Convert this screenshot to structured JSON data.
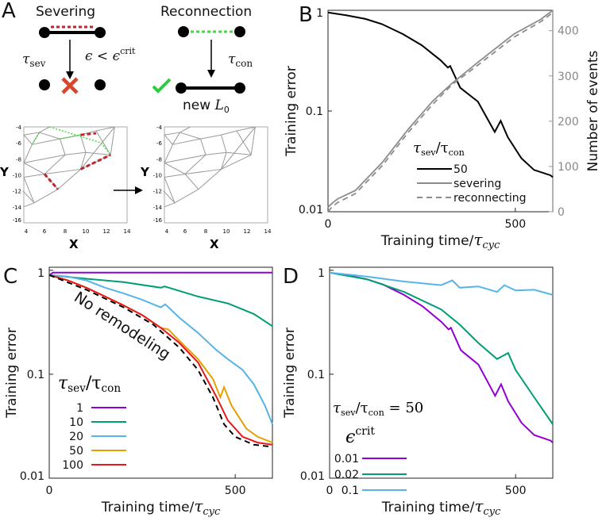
{
  "panel_letters": [
    "A",
    "B",
    "C",
    "D"
  ],
  "panelA": {
    "severing_title": "Severing",
    "reconnection_title": "Reconnection",
    "tau_sev": "τ",
    "tau_sev_sub": "sev",
    "condition": "ϵ < ϵ",
    "condition_sup": "crit",
    "tau_con": "τ",
    "tau_con_sub": "con",
    "new_L0": "new ",
    "L": "L",
    "L_sub": "0",
    "mesh_x_ticks": [
      "4",
      "6",
      "8",
      "10",
      "12",
      "14"
    ],
    "mesh_y_ticks": [
      "-4",
      "-6",
      "-8",
      "-10",
      "-12",
      "-14",
      "-16"
    ],
    "x_label": "X",
    "y_label": "Y",
    "colors": {
      "sever": "#c0272d",
      "reconnect": "#4cd34c",
      "cross": "#d9452b",
      "check": "#2ecc40"
    }
  },
  "chart_data": [
    {
      "id": "B",
      "type": "line",
      "xlabel": "Training time/τ",
      "xlabel_sub": "cyc",
      "ylabel": "Training error",
      "ylabel_right": "Number of events",
      "xlim": [
        0,
        600
      ],
      "ylim": [
        0.01,
        1
      ],
      "yscale": "log",
      "ylim_right": [
        0,
        445
      ],
      "x_ticks": [
        "0",
        "500"
      ],
      "y_ticks": [
        "1",
        "0.1",
        "0.01"
      ],
      "y_ticks_right": [
        "0",
        "100",
        "200",
        "300",
        "400"
      ],
      "legend": {
        "title": "τ",
        "title_sub1": "sev",
        "title_sub2": "con",
        "placement": "bottom-center"
      },
      "series": [
        {
          "name": "50",
          "axis": "left",
          "color": "#000000",
          "dash": false,
          "x": [
            0,
            50,
            100,
            144,
            200,
            250,
            300,
            320,
            326,
            353,
            400,
            445,
            461,
            480,
            516,
            550,
            594,
            600
          ],
          "y": [
            0.95,
            0.89,
            0.82,
            0.73,
            0.58,
            0.45,
            0.32,
            0.27,
            0.28,
            0.17,
            0.124,
            0.062,
            0.08,
            0.055,
            0.034,
            0.026,
            0.023,
            0.022
          ]
        },
        {
          "name": "severing",
          "axis": "right",
          "color": "#8c8c8c",
          "dash": false,
          "x": [
            0,
            10,
            25,
            73,
            145,
            214,
            280,
            330,
            400,
            497,
            568,
            600
          ],
          "y": [
            10,
            18,
            28,
            47,
            109,
            182,
            245,
            283,
            330,
            393,
            425,
            445
          ]
        },
        {
          "name": "reconnecting",
          "axis": "right",
          "color": "#8c8c8c",
          "dash": true,
          "x": [
            0,
            10,
            25,
            73,
            145,
            214,
            280,
            330,
            400,
            497,
            568,
            600
          ],
          "y": [
            0,
            10,
            20,
            40,
            102,
            175,
            238,
            280,
            324,
            386,
            420,
            440
          ]
        }
      ]
    },
    {
      "id": "C",
      "type": "line",
      "xlabel": "Training time/τ",
      "xlabel_sub": "cyc",
      "ylabel": "Training error",
      "xlim": [
        0,
        600
      ],
      "ylim": [
        0.01,
        1.07
      ],
      "yscale": "log",
      "x_ticks": [
        "0",
        "500"
      ],
      "y_ticks": [
        "1",
        "0.1",
        "0.01"
      ],
      "annotation": "No remodeling",
      "legend": {
        "title": "τ",
        "title_sub1": "sev",
        "title_sub2": "con",
        "placement": "bottom-left"
      },
      "series": [
        {
          "name": "1",
          "color": "#9400d3",
          "dash": false,
          "x": [
            0,
            10,
            600
          ],
          "y": [
            0.9,
            0.95,
            0.95
          ]
        },
        {
          "name": "10",
          "color": "#009e73",
          "dash": false,
          "x": [
            0,
            100,
            200,
            300,
            310,
            400,
            480,
            550,
            600
          ],
          "y": [
            0.9,
            0.83,
            0.77,
            0.68,
            0.7,
            0.56,
            0.48,
            0.38,
            0.29
          ]
        },
        {
          "name": "20",
          "color": "#56b4e9",
          "dash": false,
          "x": [
            0,
            50,
            100,
            150,
            200,
            250,
            300,
            312,
            350,
            400,
            450,
            480,
            520,
            550,
            580,
            600
          ],
          "y": [
            0.9,
            0.87,
            0.8,
            0.68,
            0.6,
            0.52,
            0.44,
            0.47,
            0.35,
            0.25,
            0.17,
            0.14,
            0.11,
            0.08,
            0.05,
            0.033
          ]
        },
        {
          "name": "50",
          "color": "#e69f00",
          "dash": false,
          "x": [
            0,
            50,
            100,
            150,
            200,
            250,
            300,
            320,
            350,
            400,
            440,
            460,
            470,
            490,
            530,
            560,
            600
          ],
          "y": [
            0.9,
            0.8,
            0.68,
            0.56,
            0.46,
            0.37,
            0.28,
            0.27,
            0.21,
            0.14,
            0.09,
            0.06,
            0.075,
            0.05,
            0.03,
            0.025,
            0.022
          ]
        },
        {
          "name": "100",
          "color": "#e41a1c",
          "dash": false,
          "x": [
            0,
            50,
            100,
            150,
            200,
            250,
            300,
            350,
            400,
            450,
            480,
            520,
            560,
            600
          ],
          "y": [
            0.9,
            0.8,
            0.68,
            0.56,
            0.46,
            0.37,
            0.28,
            0.2,
            0.13,
            0.06,
            0.036,
            0.025,
            0.022,
            0.021
          ]
        },
        {
          "name": "No remodeling",
          "color": "#000000",
          "dash": true,
          "legend": false,
          "x": [
            0,
            100,
            200,
            280,
            350,
            400,
            440,
            470,
            500,
            550,
            600
          ],
          "y": [
            0.9,
            0.65,
            0.44,
            0.3,
            0.18,
            0.11,
            0.06,
            0.033,
            0.025,
            0.021,
            0.02
          ]
        }
      ]
    },
    {
      "id": "D",
      "type": "line",
      "xlabel": "Training time/τ",
      "xlabel_sub": "cyc",
      "ylabel": "Training error",
      "xlim": [
        0,
        600
      ],
      "ylim": [
        0.01,
        1.07
      ],
      "yscale": "log",
      "x_ticks": [
        "0",
        "500"
      ],
      "y_ticks": [
        "1",
        "0.1",
        "0.01"
      ],
      "annotation": "τ",
      "annotation_sub1": "sev",
      "annotation_sub2": "con",
      "annotation_value": " = 50",
      "legend": {
        "title": "ϵ",
        "title_sup": "crit",
        "placement": "bottom-left"
      },
      "series": [
        {
          "name": "0.01",
          "color": "#9400d3",
          "dash": false,
          "x": [
            0,
            50,
            100,
            144,
            200,
            250,
            300,
            320,
            326,
            353,
            400,
            445,
            461,
            480,
            516,
            550,
            594,
            600
          ],
          "y": [
            0.95,
            0.89,
            0.82,
            0.73,
            0.58,
            0.45,
            0.32,
            0.27,
            0.28,
            0.17,
            0.124,
            0.062,
            0.08,
            0.055,
            0.034,
            0.026,
            0.023,
            0.022
          ]
        },
        {
          "name": "0.02",
          "color": "#009e73",
          "dash": false,
          "x": [
            0,
            100,
            200,
            300,
            350,
            400,
            450,
            480,
            500,
            550,
            600
          ],
          "y": [
            0.95,
            0.82,
            0.62,
            0.42,
            0.3,
            0.2,
            0.14,
            0.16,
            0.11,
            0.06,
            0.033
          ]
        },
        {
          "name": "0.1",
          "color": "#56b4e9",
          "dash": false,
          "x": [
            0,
            100,
            200,
            300,
            330,
            350,
            400,
            450,
            470,
            500,
            550,
            600
          ],
          "y": [
            0.95,
            0.87,
            0.78,
            0.72,
            0.8,
            0.68,
            0.7,
            0.62,
            0.72,
            0.64,
            0.65,
            0.58
          ]
        }
      ]
    }
  ]
}
